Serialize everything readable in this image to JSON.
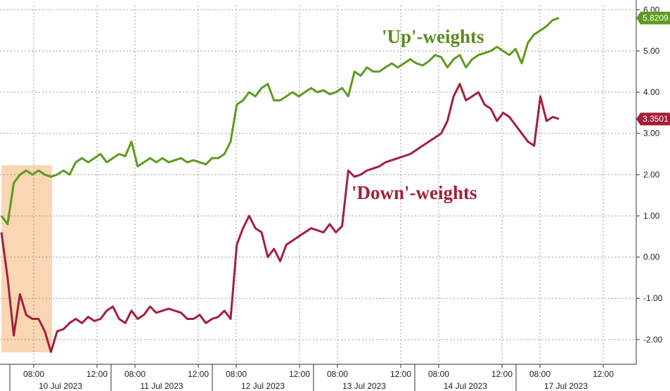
{
  "chart_data": {
    "type": "line",
    "ylim": [
      -2.6,
      6.1
    ],
    "y_ticks": [
      -2,
      -1,
      0,
      1,
      2,
      3,
      4,
      5,
      6
    ],
    "y_tick_labels": [
      "-2.00",
      "-1.00",
      "0.00",
      "1.00",
      "2.00",
      "3.00",
      "4.00",
      "5.00",
      "6.00"
    ],
    "x_tick_labels": [
      "08:00",
      "12:00",
      "08:00",
      "12:00",
      "08:00",
      "12:00",
      "08:00",
      "12:00",
      "08:00",
      "12:00",
      "08:00",
      "12:00"
    ],
    "date_labels": [
      "10 Jul 2023",
      "11 Jul 2023",
      "12 Jul 2023",
      "13 Jul 2023",
      "14 Jul 2023",
      "17 Jul 2023"
    ],
    "grid": true,
    "annotations": [
      {
        "text": "'Up'-weights",
        "color": "#5b8a1e"
      },
      {
        "text": "'Down'-weights",
        "color": "#a3203a"
      }
    ],
    "highlight_color": "#f9cfa4",
    "series": [
      {
        "color": "#5e9a1f",
        "last_value_label": "5.8209",
        "values": [
          1.0,
          0.8,
          1.8,
          2.0,
          2.1,
          2.0,
          2.1,
          2.0,
          1.95,
          2.0,
          2.1,
          2.0,
          2.3,
          2.4,
          2.3,
          2.4,
          2.5,
          2.3,
          2.4,
          2.5,
          2.45,
          2.8,
          2.2,
          2.3,
          2.4,
          2.3,
          2.4,
          2.3,
          2.35,
          2.4,
          2.3,
          2.35,
          2.3,
          2.25,
          2.4,
          2.4,
          2.5,
          2.8,
          3.7,
          3.8,
          4.0,
          3.9,
          4.1,
          4.2,
          3.8,
          3.8,
          3.9,
          4.0,
          3.9,
          4.0,
          4.1,
          4.0,
          4.05,
          3.95,
          4.0,
          4.1,
          3.9,
          4.5,
          4.4,
          4.6,
          4.5,
          4.5,
          4.6,
          4.7,
          4.6,
          4.7,
          4.8,
          4.7,
          4.65,
          4.75,
          4.9,
          4.85,
          4.6,
          4.8,
          4.9,
          4.6,
          4.8,
          4.9,
          4.95,
          5.0,
          5.1,
          5.0,
          4.9,
          5.05,
          4.7,
          5.2,
          5.4,
          5.5,
          5.6,
          5.75,
          5.8
        ]
      },
      {
        "color": "#a3203a",
        "last_value_label": "3.3501",
        "values": [
          0.6,
          -0.5,
          -1.9,
          -0.9,
          -1.4,
          -1.5,
          -1.5,
          -1.8,
          -2.3,
          -1.8,
          -1.75,
          -1.6,
          -1.5,
          -1.6,
          -1.45,
          -1.55,
          -1.5,
          -1.3,
          -1.2,
          -1.5,
          -1.6,
          -1.3,
          -1.5,
          -1.4,
          -1.2,
          -1.35,
          -1.3,
          -1.25,
          -1.3,
          -1.35,
          -1.5,
          -1.5,
          -1.4,
          -1.6,
          -1.5,
          -1.45,
          -1.3,
          -1.5,
          0.3,
          0.7,
          1.0,
          0.7,
          0.6,
          0.0,
          0.2,
          -0.1,
          0.3,
          0.4,
          0.5,
          0.6,
          0.7,
          0.65,
          0.6,
          0.8,
          0.6,
          0.75,
          2.1,
          1.95,
          2.0,
          2.1,
          2.15,
          2.2,
          2.3,
          2.35,
          2.4,
          2.45,
          2.5,
          2.6,
          2.7,
          2.8,
          2.9,
          3.0,
          3.3,
          3.9,
          4.2,
          3.8,
          3.9,
          4.0,
          3.7,
          3.6,
          3.3,
          3.5,
          3.4,
          3.2,
          3.0,
          2.8,
          2.7,
          3.9,
          3.3,
          3.4,
          3.35
        ]
      }
    ]
  }
}
